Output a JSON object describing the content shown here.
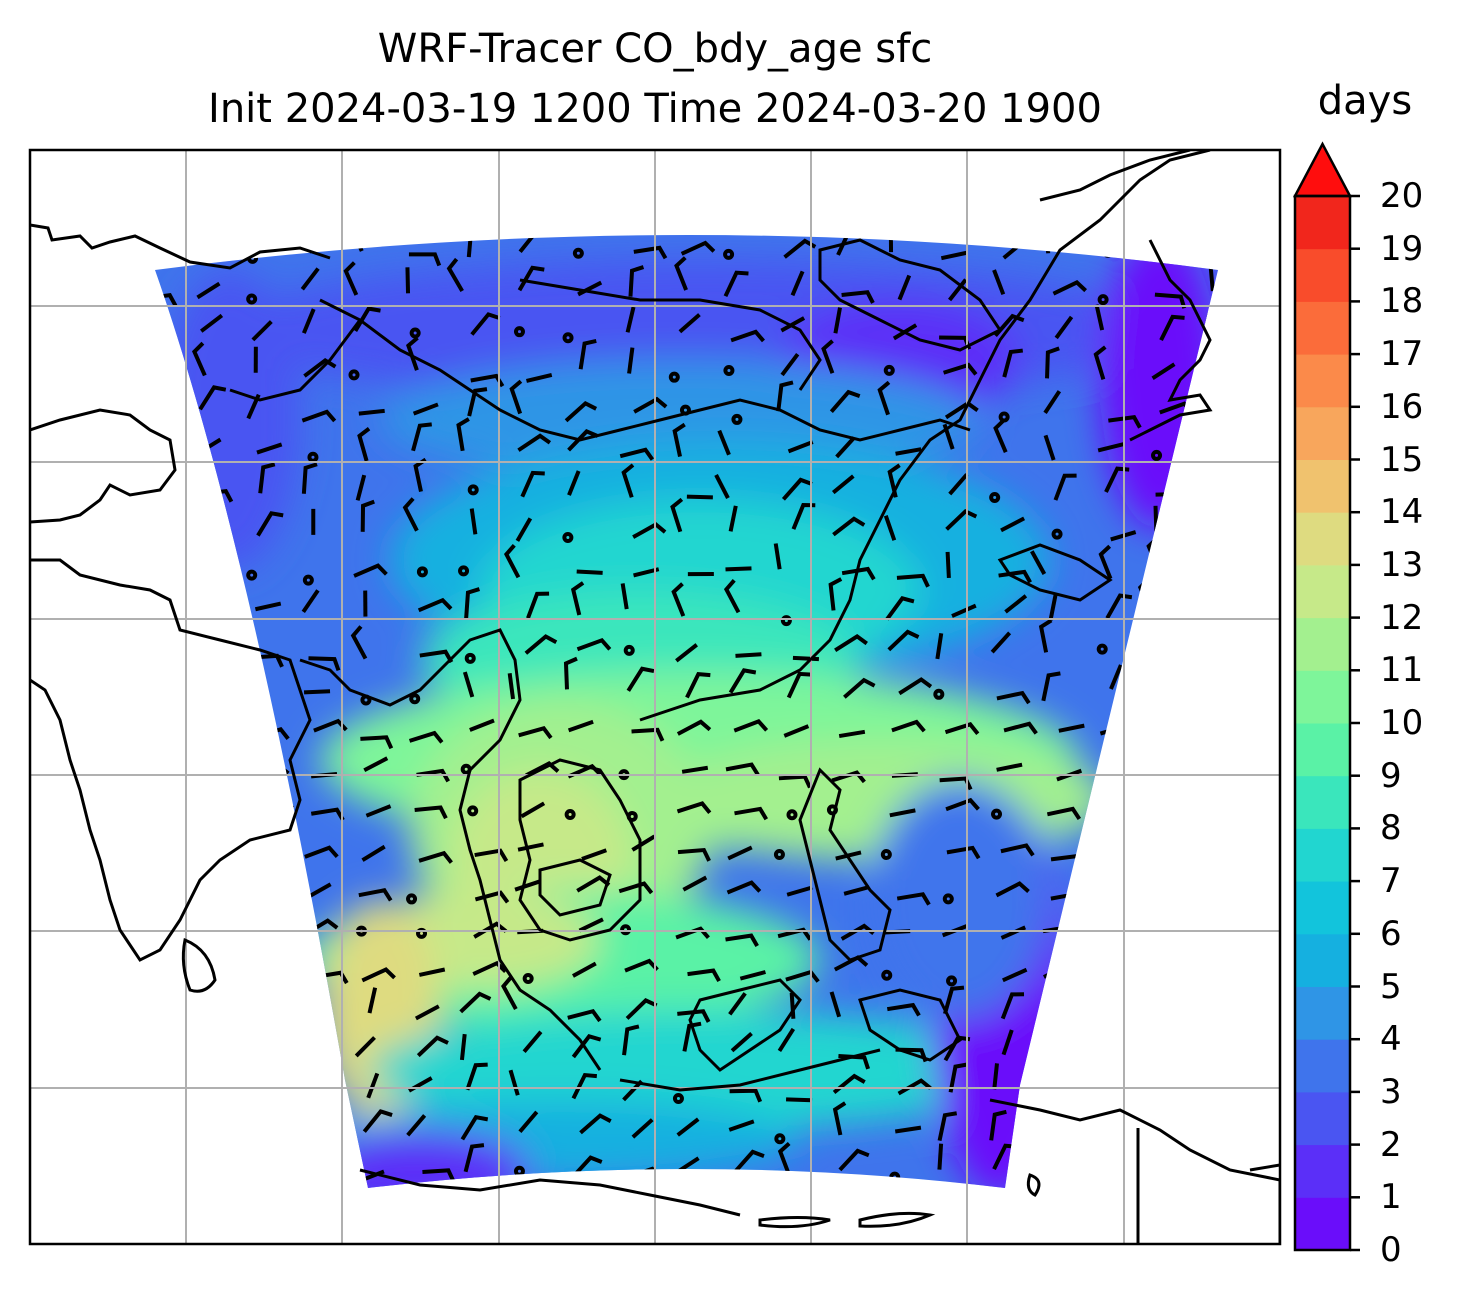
{
  "title": {
    "line1": "WRF-Tracer CO_bdy_age sfc",
    "line2": "Init 2024-03-19 1200 Time 2024-03-20 1900"
  },
  "colorbar": {
    "label": "days",
    "ticks": [
      "0",
      "1",
      "2",
      "3",
      "4",
      "5",
      "6",
      "7",
      "8",
      "9",
      "10",
      "11",
      "12",
      "13",
      "14",
      "15",
      "16",
      "17",
      "18",
      "19",
      "20"
    ],
    "extend": "max",
    "colors": [
      "#6a0dfa",
      "#5b2ff8",
      "#4a55f2",
      "#3f74ec",
      "#2f95e6",
      "#15b0e0",
      "#12c4dc",
      "#21d6d0",
      "#3ae6bc",
      "#5af2a6",
      "#7ef59a",
      "#a3f08f",
      "#c6e989",
      "#dedb80",
      "#f0c26e",
      "#f8a65c",
      "#fb8a4a",
      "#fb6c3a",
      "#f94c2b",
      "#f1261c",
      "#ff0d0d"
    ]
  },
  "map": {
    "projection": "regional (Southeast Asia domain)",
    "gridlines": true,
    "coastlines": true,
    "wind_barbs": true,
    "field_colors": {
      "low": "#6a0dfa",
      "mid": "#21d6d0",
      "high": "#dedb80"
    }
  }
}
